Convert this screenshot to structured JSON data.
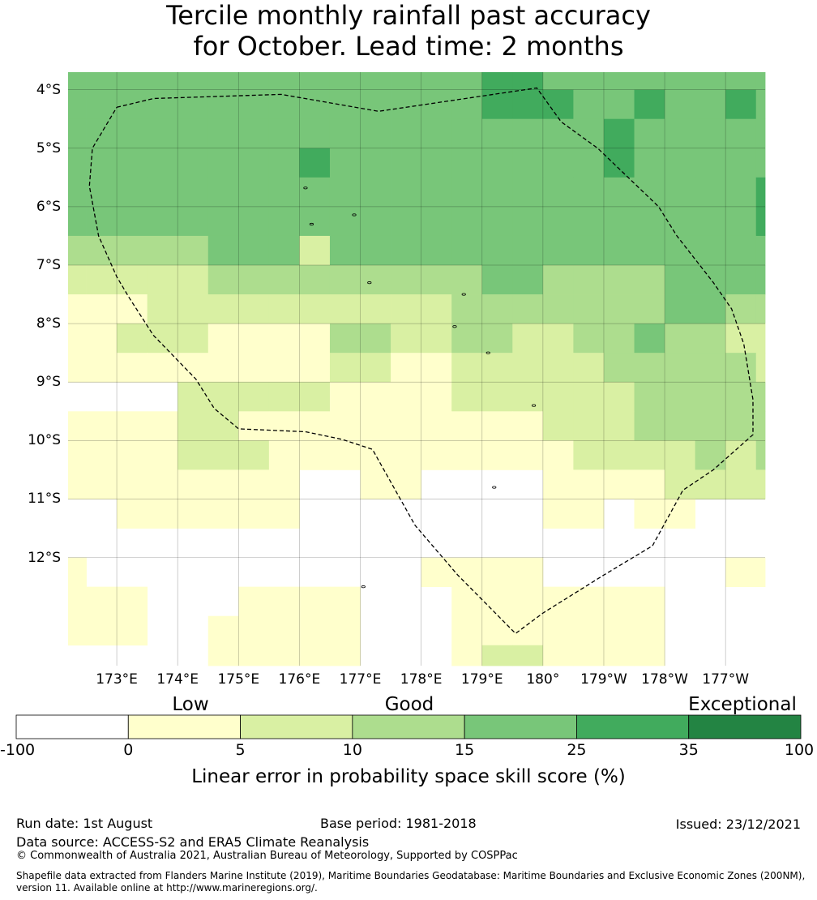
{
  "title": {
    "line1": "Tercile monthly rainfall past accuracy",
    "line2": "for October. Lead time: 2 months"
  },
  "map": {
    "lon_edges": [
      172.2,
      172.5,
      173.0,
      173.5,
      174.0,
      174.5,
      175.0,
      175.5,
      176.0,
      176.5,
      177.0,
      177.5,
      178.0,
      178.5,
      179.0,
      179.5,
      180.0,
      180.5,
      181.0,
      181.5,
      182.0,
      182.5,
      183.0,
      183.5,
      183.65
    ],
    "lat_edges": [
      -3.7,
      -4.0,
      -4.5,
      -5.0,
      -5.5,
      -6.0,
      -6.5,
      -7.0,
      -7.5,
      -8.0,
      -8.5,
      -9.0,
      -9.5,
      -10.0,
      -10.5,
      -11.0,
      -11.5,
      -12.0,
      -12.5,
      -13.0,
      -13.5,
      -13.85
    ],
    "extent": {
      "lon_min": 172.2,
      "lon_max": 183.65,
      "lat_max": -3.7,
      "lat_min": -13.85
    },
    "grid": [
      [
        4,
        4,
        4,
        4,
        4,
        4,
        4,
        4,
        4,
        4,
        4,
        4,
        4,
        4,
        5,
        5,
        4,
        4,
        4,
        4,
        4,
        4,
        4,
        4
      ],
      [
        4,
        4,
        4,
        4,
        4,
        4,
        4,
        4,
        4,
        4,
        4,
        4,
        4,
        4,
        5,
        5,
        5,
        4,
        4,
        5,
        4,
        4,
        5,
        4
      ],
      [
        4,
        4,
        4,
        4,
        4,
        4,
        4,
        4,
        4,
        4,
        4,
        4,
        4,
        4,
        4,
        4,
        4,
        4,
        5,
        4,
        4,
        4,
        4,
        4
      ],
      [
        4,
        4,
        4,
        4,
        4,
        4,
        4,
        4,
        5,
        4,
        4,
        4,
        4,
        4,
        4,
        4,
        4,
        4,
        5,
        4,
        4,
        4,
        4,
        4
      ],
      [
        4,
        4,
        4,
        4,
        4,
        4,
        4,
        4,
        4,
        4,
        4,
        4,
        4,
        4,
        4,
        4,
        4,
        4,
        4,
        4,
        4,
        4,
        4,
        5
      ],
      [
        4,
        4,
        4,
        4,
        4,
        4,
        4,
        4,
        4,
        4,
        4,
        4,
        4,
        4,
        4,
        4,
        4,
        4,
        4,
        4,
        4,
        4,
        4,
        5
      ],
      [
        3,
        3,
        3,
        3,
        3,
        4,
        4,
        4,
        2,
        4,
        4,
        4,
        4,
        4,
        4,
        4,
        4,
        4,
        4,
        4,
        4,
        4,
        4,
        4
      ],
      [
        2,
        2,
        2,
        2,
        2,
        3,
        3,
        3,
        3,
        3,
        3,
        3,
        3,
        3,
        4,
        4,
        3,
        3,
        3,
        3,
        4,
        4,
        4,
        4
      ],
      [
        1,
        1,
        1,
        2,
        2,
        2,
        2,
        2,
        2,
        2,
        2,
        2,
        2,
        3,
        3,
        3,
        3,
        3,
        3,
        3,
        4,
        4,
        3,
        3
      ],
      [
        1,
        1,
        2,
        2,
        2,
        1,
        1,
        1,
        1,
        3,
        3,
        2,
        2,
        3,
        3,
        2,
        2,
        3,
        3,
        4,
        3,
        3,
        2,
        2
      ],
      [
        1,
        1,
        1,
        1,
        1,
        1,
        1,
        1,
        1,
        2,
        2,
        1,
        1,
        2,
        2,
        2,
        2,
        2,
        3,
        3,
        3,
        3,
        3,
        2
      ],
      [
        0,
        0,
        0,
        0,
        2,
        2,
        2,
        2,
        2,
        1,
        1,
        1,
        1,
        2,
        2,
        2,
        2,
        2,
        2,
        3,
        3,
        3,
        3,
        3
      ],
      [
        1,
        1,
        1,
        1,
        2,
        2,
        1,
        1,
        1,
        1,
        1,
        1,
        1,
        1,
        1,
        1,
        2,
        2,
        2,
        3,
        3,
        3,
        3,
        3
      ],
      [
        1,
        1,
        1,
        1,
        2,
        2,
        2,
        1,
        1,
        1,
        1,
        1,
        1,
        1,
        1,
        1,
        1,
        2,
        2,
        2,
        2,
        3,
        2,
        3
      ],
      [
        1,
        1,
        1,
        1,
        1,
        1,
        1,
        1,
        0,
        0,
        1,
        1,
        0,
        0,
        0,
        0,
        1,
        1,
        1,
        1,
        2,
        2,
        2,
        2
      ],
      [
        0,
        0,
        1,
        1,
        1,
        1,
        1,
        1,
        0,
        0,
        0,
        0,
        0,
        0,
        0,
        0,
        1,
        1,
        0,
        1,
        1,
        0,
        0,
        0
      ],
      [
        0,
        0,
        0,
        0,
        0,
        0,
        0,
        0,
        0,
        0,
        0,
        0,
        0,
        0,
        0,
        0,
        0,
        0,
        0,
        0,
        0,
        0,
        0,
        0
      ],
      [
        1,
        0,
        0,
        0,
        0,
        0,
        0,
        0,
        0,
        0,
        0,
        0,
        1,
        1,
        1,
        1,
        0,
        0,
        0,
        0,
        0,
        0,
        1,
        1
      ],
      [
        1,
        1,
        1,
        0,
        0,
        0,
        1,
        1,
        1,
        1,
        0,
        0,
        0,
        1,
        1,
        1,
        1,
        1,
        1,
        1,
        0,
        0,
        0,
        0
      ],
      [
        1,
        1,
        1,
        0,
        0,
        1,
        1,
        1,
        1,
        1,
        0,
        0,
        0,
        1,
        1,
        1,
        1,
        1,
        1,
        1,
        0,
        0,
        0,
        0
      ],
      [
        0,
        0,
        0,
        0,
        0,
        1,
        1,
        1,
        1,
        1,
        0,
        0,
        0,
        1,
        2,
        2,
        1,
        1,
        1,
        1,
        0,
        0,
        0,
        0
      ]
    ],
    "eez_boundary": [
      [
        173.0,
        -4.3
      ],
      [
        173.6,
        -4.15
      ],
      [
        175.7,
        -4.08
      ],
      [
        177.3,
        -4.37
      ],
      [
        179.9,
        -3.97
      ],
      [
        180.3,
        -4.55
      ],
      [
        180.9,
        -5.0
      ],
      [
        181.9,
        -6.0
      ],
      [
        182.2,
        -6.5
      ],
      [
        182.8,
        -7.3
      ],
      [
        183.1,
        -7.75
      ],
      [
        183.3,
        -8.35
      ],
      [
        183.45,
        -9.3
      ],
      [
        183.45,
        -9.9
      ],
      [
        182.8,
        -10.5
      ],
      [
        182.3,
        -10.85
      ],
      [
        181.8,
        -11.8
      ],
      [
        181.0,
        -12.3
      ],
      [
        180.0,
        -12.95
      ],
      [
        179.55,
        -13.3
      ],
      [
        178.6,
        -12.3
      ],
      [
        177.9,
        -11.45
      ],
      [
        177.2,
        -10.15
      ],
      [
        176.7,
        -9.98
      ],
      [
        176.1,
        -9.85
      ],
      [
        175.0,
        -9.8
      ],
      [
        174.6,
        -9.45
      ],
      [
        174.3,
        -8.95
      ],
      [
        173.6,
        -8.2
      ],
      [
        173.2,
        -7.55
      ],
      [
        173.0,
        -7.2
      ],
      [
        172.7,
        -6.5
      ],
      [
        172.55,
        -5.65
      ],
      [
        172.6,
        -5.0
      ],
      [
        173.0,
        -4.3
      ]
    ],
    "islands": [
      [
        176.1,
        -5.68
      ],
      [
        176.2,
        -6.3
      ],
      [
        176.9,
        -6.14
      ],
      [
        177.15,
        -7.3
      ],
      [
        178.7,
        -7.5
      ],
      [
        178.55,
        -8.05
      ],
      [
        179.1,
        -8.5
      ],
      [
        179.85,
        -9.4
      ],
      [
        179.2,
        -10.8
      ],
      [
        177.05,
        -12.5
      ]
    ],
    "lat_ticks": [
      {
        "lat": -4,
        "label": "4°S"
      },
      {
        "lat": -5,
        "label": "5°S"
      },
      {
        "lat": -6,
        "label": "6°S"
      },
      {
        "lat": -7,
        "label": "7°S"
      },
      {
        "lat": -8,
        "label": "8°S"
      },
      {
        "lat": -9,
        "label": "9°S"
      },
      {
        "lat": -10,
        "label": "10°S"
      },
      {
        "lat": -11,
        "label": "11°S"
      },
      {
        "lat": -12,
        "label": "12°S"
      }
    ],
    "lon_ticks": [
      {
        "lon": 173,
        "label": "173°E"
      },
      {
        "lon": 174,
        "label": "174°E"
      },
      {
        "lon": 175,
        "label": "175°E"
      },
      {
        "lon": 176,
        "label": "176°E"
      },
      {
        "lon": 177,
        "label": "177°E"
      },
      {
        "lon": 178,
        "label": "178°E"
      },
      {
        "lon": 179,
        "label": "179°E"
      },
      {
        "lon": 180,
        "label": "180°"
      },
      {
        "lon": 181,
        "label": "179°W"
      },
      {
        "lon": 182,
        "label": "178°W"
      },
      {
        "lon": 183,
        "label": "177°W"
      }
    ],
    "grid_lines": true
  },
  "colorbar": {
    "colors": [
      "#ffffff",
      "#ffffcc",
      "#d9f0a3",
      "#addd8e",
      "#78c679",
      "#41ab5d",
      "#238443"
    ],
    "ticks": [
      "-100",
      "0",
      "5",
      "10",
      "15",
      "25",
      "35",
      "100"
    ],
    "categories": {
      "low": "Low",
      "good": "Good",
      "exceptional": "Exceptional"
    },
    "title": "Linear error in probability space skill score (%)"
  },
  "footer": {
    "run_date": "Run date: 1st August",
    "base_period": "Base period: 1981-2018",
    "issued": "Issued: 23/12/2021",
    "data_source": "Data source: ACCESS-S2 and ERA5 Climate Reanalysis",
    "copyright": "© Commonwealth of Australia 2021, Australian Bureau of Meteorology, Supported by COSPPac",
    "shapefile_line1": "Shapefile data extracted from Flanders Marine Institute (2019), Maritime Boundaries Geodatabase: Maritime Boundaries and Exclusive Economic Zones (200NM),",
    "shapefile_line2": "version 11. Available online at http://www.marineregions.org/."
  }
}
